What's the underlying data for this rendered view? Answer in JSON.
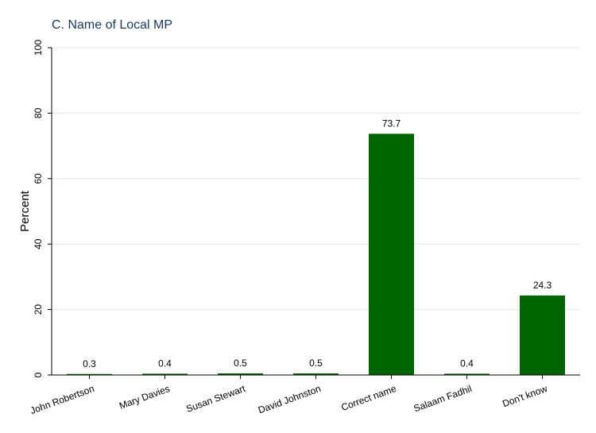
{
  "chart_data": {
    "type": "bar",
    "title": "C. Name of Local MP",
    "xlabel": "",
    "ylabel": "Percent",
    "categories": [
      "John Robertson",
      "Mary Davies",
      "Susan Stewart",
      "David Johnston",
      "Correct name",
      "Salaam Fadhil",
      "Don't know"
    ],
    "values": [
      0.3,
      0.4,
      0.5,
      0.5,
      73.7,
      0.4,
      24.3
    ],
    "data_labels": [
      "0.3",
      "0.4",
      "0.5",
      "0.5",
      "73.7",
      "0.4",
      "24.3"
    ],
    "ylim": [
      0,
      100
    ],
    "yticks": [
      0,
      20,
      40,
      60,
      80,
      100
    ],
    "grid": true,
    "bar_color": "#006400"
  }
}
